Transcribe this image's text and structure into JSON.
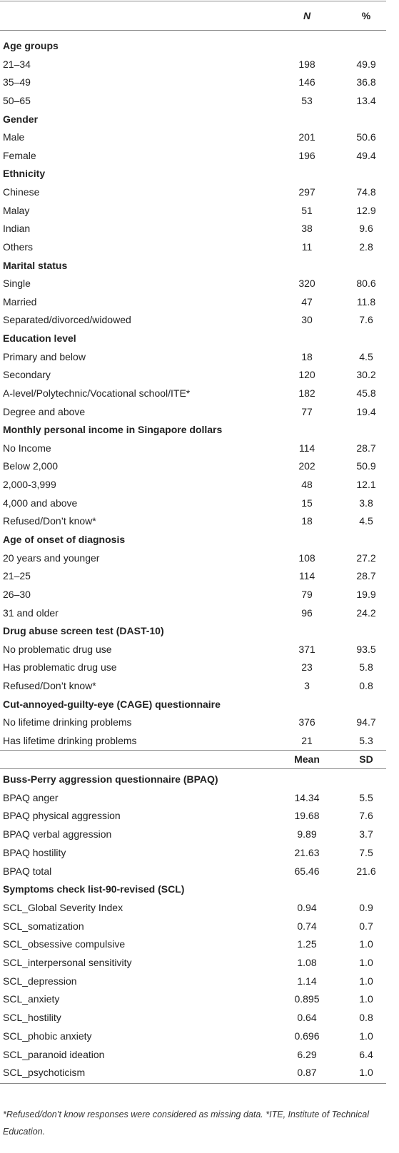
{
  "table": {
    "header": [
      "N",
      "%"
    ],
    "sections": [
      {
        "title": "Age groups",
        "rows": [
          [
            "21–34",
            "198",
            "49.9"
          ],
          [
            "35–49",
            "146",
            "36.8"
          ],
          [
            "50–65",
            "53",
            "13.4"
          ]
        ]
      },
      {
        "title": "Gender",
        "rows": [
          [
            "Male",
            "201",
            "50.6"
          ],
          [
            "Female",
            "196",
            "49.4"
          ]
        ]
      },
      {
        "title": "Ethnicity",
        "rows": [
          [
            "Chinese",
            "297",
            "74.8"
          ],
          [
            "Malay",
            "51",
            "12.9"
          ],
          [
            "Indian",
            "38",
            "9.6"
          ],
          [
            "Others",
            "11",
            "2.8"
          ]
        ]
      },
      {
        "title": "Marital status",
        "rows": [
          [
            "Single",
            "320",
            "80.6"
          ],
          [
            "Married",
            "47",
            "11.8"
          ],
          [
            "Separated/divorced/widowed",
            "30",
            "7.6"
          ]
        ]
      },
      {
        "title": "Education level",
        "rows": [
          [
            "Primary and below",
            "18",
            "4.5"
          ],
          [
            "Secondary",
            "120",
            "30.2"
          ],
          [
            "A-level/Polytechnic/Vocational school/ITE*",
            "182",
            "45.8"
          ],
          [
            "Degree and above",
            "77",
            "19.4"
          ]
        ]
      },
      {
        "title": "Monthly personal income in Singapore dollars",
        "rows": [
          [
            "No Income",
            "114",
            "28.7"
          ],
          [
            "Below 2,000",
            "202",
            "50.9"
          ],
          [
            "2,000-3,999",
            "48",
            "12.1"
          ],
          [
            "4,000 and above",
            "15",
            "3.8"
          ],
          [
            "Refused/Don’t know*",
            "18",
            "4.5"
          ]
        ]
      },
      {
        "title": "Age of onset of diagnosis",
        "rows": [
          [
            "20 years and younger",
            "108",
            "27.2"
          ],
          [
            "21–25",
            "114",
            "28.7"
          ],
          [
            "26–30",
            "79",
            "19.9"
          ],
          [
            "31 and older",
            "96",
            "24.2"
          ]
        ]
      },
      {
        "title": "Drug abuse screen test (DAST-10)",
        "rows": [
          [
            "No problematic drug use",
            "371",
            "93.5"
          ],
          [
            "Has problematic drug use",
            "23",
            "5.8"
          ],
          [
            "Refused/Don’t know*",
            "3",
            "0.8"
          ]
        ]
      },
      {
        "title": "Cut-annoyed-guilty-eye (CAGE) questionnaire",
        "rows": [
          [
            "No lifetime drinking problems",
            "376",
            "94.7"
          ],
          [
            "Has lifetime drinking problems",
            "21",
            "5.3"
          ]
        ]
      }
    ],
    "header2": [
      "Mean",
      "SD"
    ],
    "sections2": [
      {
        "title": "Buss-Perry aggression questionnaire (BPAQ)",
        "rows": [
          [
            "BPAQ anger",
            "14.34",
            "5.5"
          ],
          [
            "BPAQ physical aggression",
            "19.68",
            "7.6"
          ],
          [
            "BPAQ verbal aggression",
            "9.89",
            "3.7"
          ],
          [
            "BPAQ hostility",
            "21.63",
            "7.5"
          ],
          [
            "BPAQ total",
            "65.46",
            "21.6"
          ]
        ]
      },
      {
        "title": "Symptoms check list-90-revised (SCL)",
        "rows": [
          [
            "SCL_Global Severity Index",
            "0.94",
            "0.9"
          ],
          [
            "SCL_somatization",
            "0.74",
            "0.7"
          ],
          [
            "SCL_obsessive compulsive",
            "1.25",
            "1.0"
          ],
          [
            "SCL_interpersonal sensitivity",
            "1.08",
            "1.0"
          ],
          [
            "SCL_depression",
            "1.14",
            "1.0"
          ],
          [
            "SCL_anxiety",
            "0.895",
            "1.0"
          ],
          [
            "SCL_hostility",
            "0.64",
            "0.8"
          ],
          [
            "SCL_phobic anxiety",
            "0.696",
            "1.0"
          ],
          [
            "SCL_paranoid ideation",
            "6.29",
            "6.4"
          ],
          [
            "SCL_psychoticism",
            "0.87",
            "1.0"
          ]
        ]
      }
    ]
  },
  "footnote": "*Refused/don’t know responses were considered as missing data. *ITE, Institute of Technical Education."
}
